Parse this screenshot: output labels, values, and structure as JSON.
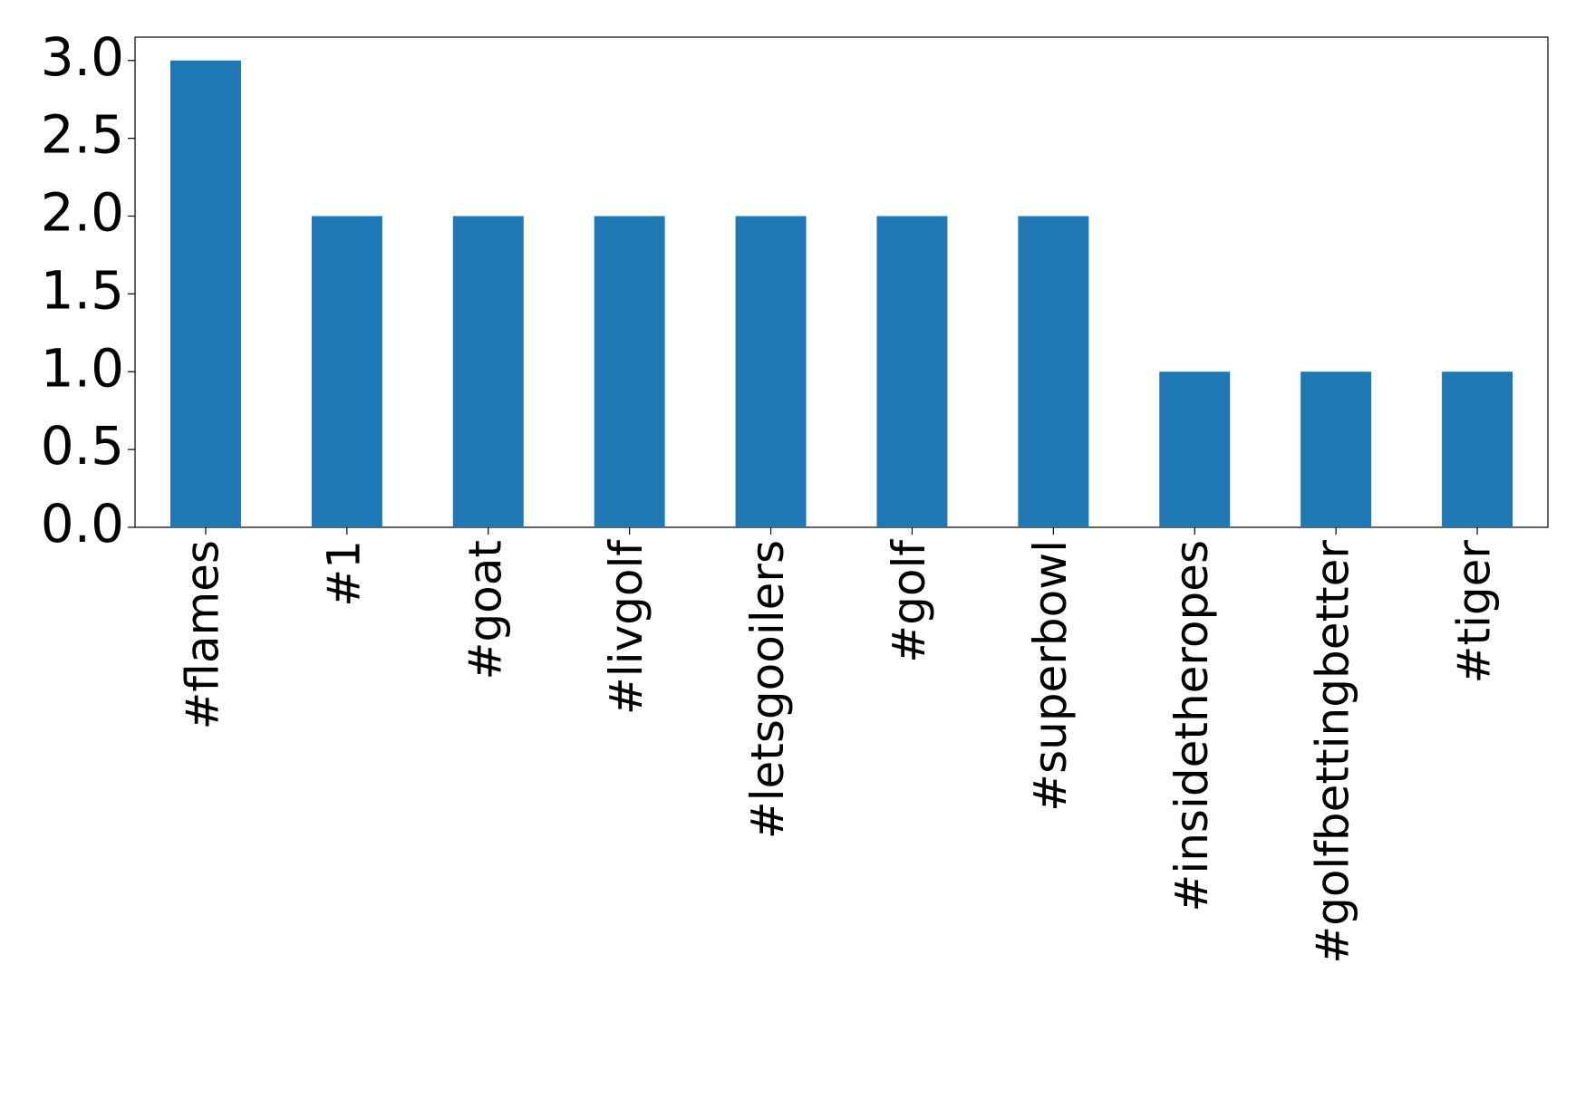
{
  "chart_data": {
    "type": "bar",
    "categories": [
      "#flames",
      "#1",
      "#goat",
      "#livgolf",
      "#letsgooilers",
      "#golf",
      "#superbowl",
      "#insidetheropes",
      "#golfbettingbetter",
      "#tiger"
    ],
    "values": [
      3,
      2,
      2,
      2,
      2,
      2,
      2,
      1,
      1,
      1
    ],
    "color": "#1f77b4",
    "ylim": [
      0,
      3.15
    ],
    "yticks": [
      {
        "value": 0,
        "label": "0.0"
      },
      0.5,
      {
        "value": 1,
        "label": "1.0"
      },
      1.5,
      {
        "value": 2,
        "label": "2.0"
      },
      2.5,
      {
        "value": 3,
        "label": "3.0"
      }
    ],
    "grid": false
  }
}
